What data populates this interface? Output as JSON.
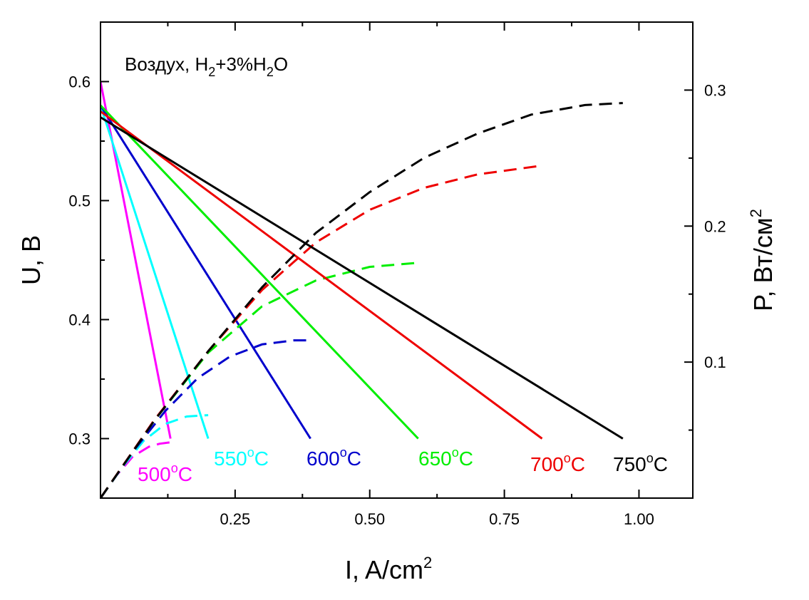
{
  "chart_data": {
    "type": "line",
    "annotation": {
      "parts": [
        {
          "text": "Воздух, H",
          "sub": false
        },
        {
          "text": "2",
          "sub": true
        },
        {
          "text": "+3%H",
          "sub": false
        },
        {
          "text": "2",
          "sub": true
        },
        {
          "text": "O",
          "sub": false
        }
      ]
    },
    "xlabel": {
      "main": "I, A/cm",
      "sup": "2"
    },
    "ylabel_left": "U, В",
    "ylabel_right": {
      "main": "P, Вт/см",
      "sup": "2"
    },
    "xlim": [
      0.0,
      1.1
    ],
    "ylim_left": [
      0.25,
      0.65
    ],
    "ylim_right": [
      0.0,
      0.35
    ],
    "x_ticks": [
      0.25,
      0.5,
      0.75,
      1.0
    ],
    "x_tick_labels": [
      "0.25",
      "0.50",
      "0.75",
      "1.00"
    ],
    "x_minor_ticks": [
      0.125,
      0.375,
      0.625,
      0.875
    ],
    "y_left_ticks": [
      0.3,
      0.4,
      0.5,
      0.6
    ],
    "y_left_tick_labels": [
      "0.3",
      "0.4",
      "0.5",
      "0.6"
    ],
    "y_left_minor_ticks": [
      0.35,
      0.45,
      0.55
    ],
    "y_right_ticks": [
      0.1,
      0.2,
      0.3
    ],
    "y_right_tick_labels": [
      "0.1",
      "0.2",
      "0.3"
    ],
    "y_right_minor_ticks": [
      0.05,
      0.15,
      0.25
    ],
    "grid": false,
    "series": [
      {
        "name": "500°C",
        "label_parts": [
          "500",
          "o",
          "C"
        ],
        "color": "#ff00ff",
        "voltage": {
          "x": [
            0.0,
            0.13
          ],
          "y": [
            0.6,
            0.3
          ]
        },
        "power": {
          "x": [
            0.0,
            0.03,
            0.06,
            0.09,
            0.11,
            0.13
          ],
          "y": [
            0.0,
            0.0168,
            0.0306,
            0.0378,
            0.04,
            0.041
          ]
        }
      },
      {
        "name": "550°C",
        "label_parts": [
          "550",
          "o",
          "C"
        ],
        "color": "#00ffff",
        "voltage": {
          "x": [
            0.0,
            0.2
          ],
          "y": [
            0.58,
            0.3
          ]
        },
        "power": {
          "x": [
            0.0,
            0.04,
            0.08,
            0.12,
            0.16,
            0.2
          ],
          "y": [
            0.0,
            0.0225,
            0.042,
            0.0545,
            0.06,
            0.061
          ]
        }
      },
      {
        "name": "600°C",
        "label_parts": [
          "600",
          "o",
          "C"
        ],
        "color": "#0000cc",
        "voltage": {
          "x": [
            0.0,
            0.39
          ],
          "y": [
            0.58,
            0.3
          ]
        },
        "power": {
          "x": [
            0.0,
            0.06,
            0.12,
            0.18,
            0.24,
            0.3,
            0.36,
            0.39
          ],
          "y": [
            0.0,
            0.034,
            0.064,
            0.088,
            0.104,
            0.113,
            0.116,
            0.116
          ]
        }
      },
      {
        "name": "650°C",
        "label_parts": [
          "650",
          "o",
          "C"
        ],
        "color": "#00ee00",
        "voltage": {
          "x": [
            0.0,
            0.59
          ],
          "y": [
            0.58,
            0.3
          ]
        },
        "power": {
          "x": [
            0.0,
            0.1,
            0.2,
            0.3,
            0.4,
            0.5,
            0.59
          ],
          "y": [
            0.0,
            0.057,
            0.107,
            0.141,
            0.16,
            0.17,
            0.173
          ]
        }
      },
      {
        "name": "700°C",
        "label_parts": [
          "700",
          "o",
          "C"
        ],
        "color": "#ee0000",
        "voltage": {
          "x": [
            0.0,
            0.82
          ],
          "y": [
            0.575,
            0.3
          ]
        },
        "power": {
          "x": [
            0.0,
            0.1,
            0.2,
            0.3,
            0.4,
            0.5,
            0.6,
            0.7,
            0.82
          ],
          "y": [
            0.0,
            0.0575,
            0.108,
            0.153,
            0.188,
            0.212,
            0.228,
            0.238,
            0.2445
          ]
        }
      },
      {
        "name": "750°C",
        "label_parts": [
          "750",
          "o",
          "C"
        ],
        "color": "#000000",
        "voltage": {
          "x": [
            0.0,
            0.97
          ],
          "y": [
            0.57,
            0.3
          ]
        },
        "power": {
          "x": [
            0.0,
            0.1,
            0.2,
            0.3,
            0.4,
            0.5,
            0.6,
            0.7,
            0.8,
            0.9,
            0.97
          ],
          "y": [
            0.0,
            0.057,
            0.108,
            0.155,
            0.195,
            0.225,
            0.25,
            0.268,
            0.282,
            0.289,
            0.2905
          ]
        }
      }
    ]
  }
}
